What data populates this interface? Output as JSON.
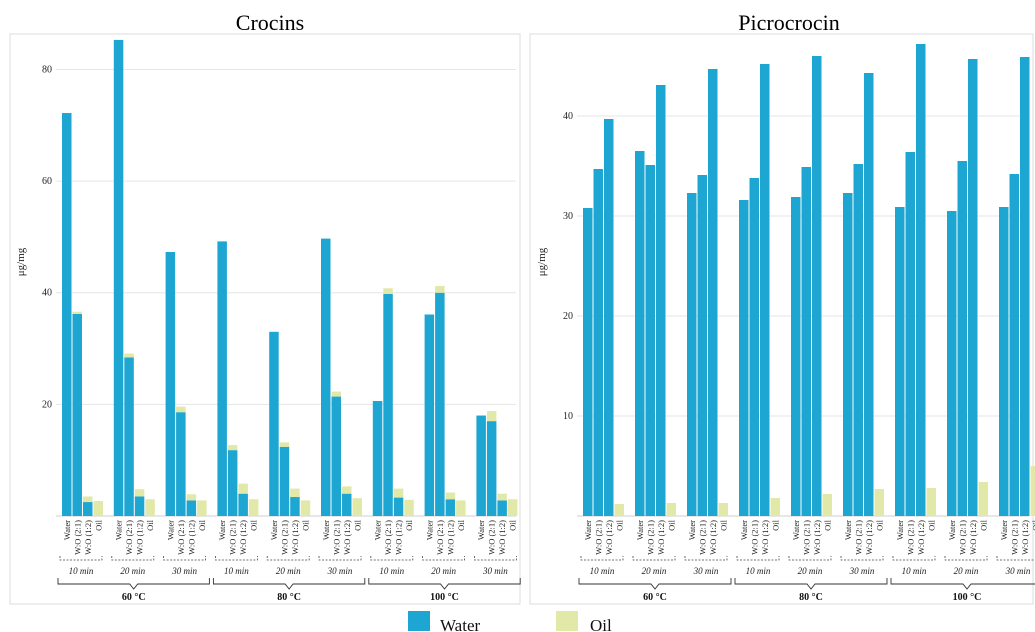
{
  "chart_data": [
    {
      "type": "bar",
      "title": "Crocins",
      "ylabel": "μg/mg",
      "ylim": [
        0,
        86
      ],
      "yticks": [
        20,
        40,
        60,
        80
      ],
      "grid": true,
      "x_levels": {
        "temperatures": [
          "60 °C",
          "80 °C",
          "100 °C"
        ],
        "times": [
          "10 min",
          "20 min",
          "30 min"
        ],
        "solvents": [
          "Water",
          "W:O (2:1)",
          "W:O (1:2)",
          "Oil"
        ]
      },
      "series": [
        {
          "name": "Water",
          "values": [
            72.2,
            36.2,
            2.5,
            0,
            85.3,
            28.4,
            3.5,
            0,
            47.3,
            18.6,
            2.8,
            0,
            49.2,
            11.8,
            4.0,
            0,
            33.0,
            12.4,
            3.4,
            0,
            49.7,
            21.4,
            4.0,
            0,
            20.6,
            39.8,
            3.3,
            0,
            36.1,
            40.0,
            3.0,
            0,
            18.0,
            17.0,
            2.8,
            0
          ]
        },
        {
          "name": "Oil",
          "values": [
            0,
            0.4,
            1.0,
            2.7,
            0,
            0.7,
            1.3,
            3.0,
            0,
            1.0,
            1.1,
            2.8,
            0,
            0.9,
            1.8,
            3.0,
            0,
            0.8,
            1.5,
            2.8,
            0,
            0.9,
            1.3,
            3.2,
            0,
            1.0,
            1.6,
            2.9,
            0,
            1.2,
            1.2,
            2.8,
            0,
            1.8,
            1.2,
            3.0
          ]
        }
      ]
    },
    {
      "type": "bar",
      "title": "Picrocrocin",
      "ylabel": "μg/mg",
      "ylim": [
        0,
        48
      ],
      "yticks": [
        10,
        20,
        30,
        40
      ],
      "grid": true,
      "x_levels": {
        "temperatures": [
          "60 °C",
          "80 °C",
          "100 °C"
        ],
        "times": [
          "10 min",
          "20 min",
          "30 min"
        ],
        "solvents": [
          "Water",
          "W:O (2:1)",
          "W:O (1:2)",
          "Oil"
        ]
      },
      "series": [
        {
          "name": "Water",
          "values": [
            30.8,
            34.7,
            39.7,
            0,
            36.5,
            35.1,
            43.1,
            0,
            32.3,
            34.1,
            44.7,
            0,
            31.6,
            33.8,
            45.2,
            0,
            31.9,
            34.9,
            46.0,
            0,
            32.3,
            35.2,
            44.3,
            0,
            30.9,
            36.4,
            47.2,
            0,
            30.5,
            35.5,
            45.7,
            0,
            30.9,
            34.2,
            45.9,
            0
          ]
        },
        {
          "name": "Oil",
          "values": [
            0,
            0,
            0,
            1.2,
            0,
            0,
            0,
            1.3,
            0,
            0,
            0,
            1.3,
            0,
            0,
            0,
            1.8,
            0,
            0,
            0,
            2.2,
            0,
            0,
            0,
            2.7,
            0,
            0,
            0,
            2.8,
            0,
            0,
            0,
            3.4,
            0,
            0,
            0,
            5.0
          ]
        }
      ]
    }
  ],
  "legend": [
    {
      "name": "Water",
      "color": "#1ea6d2"
    },
    {
      "name": "Oil",
      "color": "#e2e8a7"
    }
  ]
}
